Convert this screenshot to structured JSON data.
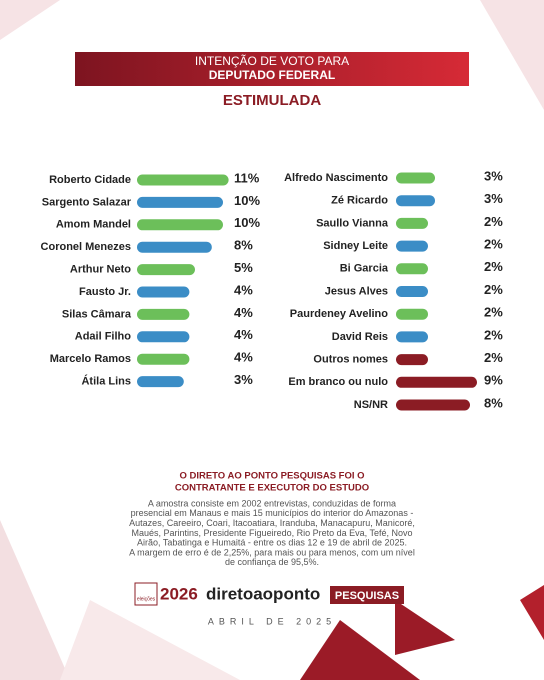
{
  "header": {
    "title_lines": [
      "INTENÇÃO DE VOTO PARA",
      "DEPUTADO FEDERAL"
    ],
    "subtitle": "ESTIMULADA"
  },
  "chart_data": [
    {
      "type": "bar",
      "orientation": "horizontal",
      "categories": [
        "Roberto Cidade",
        "Sargento Salazar",
        "Amom Mandel",
        "Coronel Menezes",
        "Arthur Neto",
        "Fausto Jr.",
        "Silas Câmara",
        "Adail Filho",
        "Marcelo Ramos",
        "Átila Lins"
      ],
      "values": [
        11,
        10,
        10,
        8,
        5,
        4,
        4,
        4,
        4,
        3
      ],
      "value_labels": [
        "11%",
        "10%",
        "10%",
        "8%",
        "5%",
        "4%",
        "4%",
        "4%",
        "4%",
        "3%"
      ],
      "colors": [
        "#6cbf5a",
        "#3b8dc6",
        "#6cbf5a",
        "#3b8dc6",
        "#6cbf5a",
        "#3b8dc6",
        "#6cbf5a",
        "#3b8dc6",
        "#6cbf5a",
        "#3b8dc6"
      ]
    },
    {
      "type": "bar",
      "orientation": "horizontal",
      "categories": [
        "Alfredo Nascimento",
        "Zé Ricardo",
        "Saullo Vianna",
        "Sidney Leite",
        "Bi Garcia",
        "Jesus Alves",
        "Paurdeney Avelino",
        "David Reis",
        "Outros nomes",
        "Em branco ou nulo",
        "NS/NR"
      ],
      "values": [
        3,
        3,
        2,
        2,
        2,
        2,
        2,
        2,
        2,
        9,
        8
      ],
      "value_labels": [
        "3%",
        "3%",
        "2%",
        "2%",
        "2%",
        "2%",
        "2%",
        "2%",
        "2%",
        "9%",
        "8%"
      ],
      "colors": [
        "#6cbf5a",
        "#3b8dc6",
        "#6cbf5a",
        "#3b8dc6",
        "#6cbf5a",
        "#3b8dc6",
        "#6cbf5a",
        "#3b8dc6",
        "#8b1c24",
        "#8b1c24",
        "#8b1c24"
      ]
    }
  ],
  "footer": {
    "title_lines": [
      "O DIRETO AO PONTO PESQUISAS FOI O",
      "CONTRATANTE E EXECUTOR DO ESTUDO"
    ],
    "text_lines": [
      "A amostra consiste em 2002 entrevistas, conduzidas de forma",
      "presencial em Manaus e mais 15 municípios do interior do Amazonas -",
      "Autazes, Careeiro, Coari, Itacoatiara, Iranduba, Manacapuru, Manicoré,",
      "Maués, Parintins, Presidente Figueiredo, Rio Preto da Eva, Tefé, Novo",
      "Airão, Tabatinga e Humaitá - entre os dias 12 e 19 de abril de 2025.",
      "A margem de erro é de 2,25%, para mais ou para menos, com um nível",
      "de confiança de 95,5%."
    ],
    "logo": {
      "badge": "eleições",
      "year": "2026",
      "brand": "diretoaoponto",
      "tag": "PESQUISAS"
    },
    "date": "ABRIL DE 2025"
  }
}
